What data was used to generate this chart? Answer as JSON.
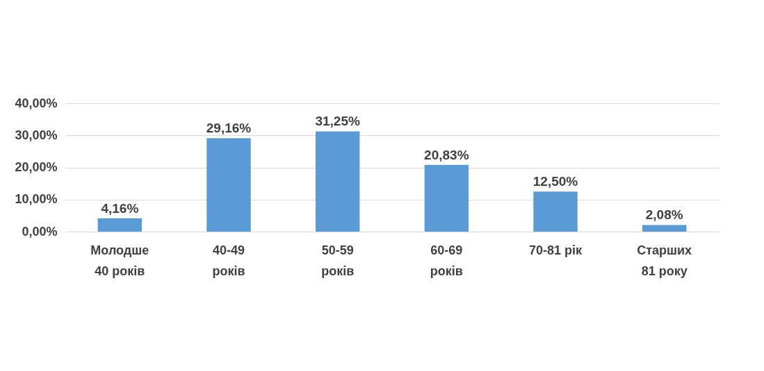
{
  "chart_data": {
    "type": "bar",
    "categories": [
      "Молодше 40 років",
      "40-49 років",
      "50-59 років",
      "60-69 років",
      "70-81 рік",
      "Старших 81 року"
    ],
    "values": [
      4.16,
      29.16,
      31.25,
      20.83,
      12.5,
      2.08
    ],
    "value_labels": [
      "4,16%",
      "29,16%",
      "31,25%",
      "20,83%",
      "12,50%",
      "2,08%"
    ],
    "color": "#5b9bd5",
    "ylim": [
      0,
      40
    ],
    "yticks": [
      {
        "value": 0,
        "label": "0,00%"
      },
      {
        "value": 10,
        "label": "10,00%"
      },
      {
        "value": 20,
        "label": "20,00%"
      },
      {
        "value": 30,
        "label": "30,00%"
      },
      {
        "value": 40,
        "label": "40,00%"
      }
    ],
    "grid": "y"
  }
}
